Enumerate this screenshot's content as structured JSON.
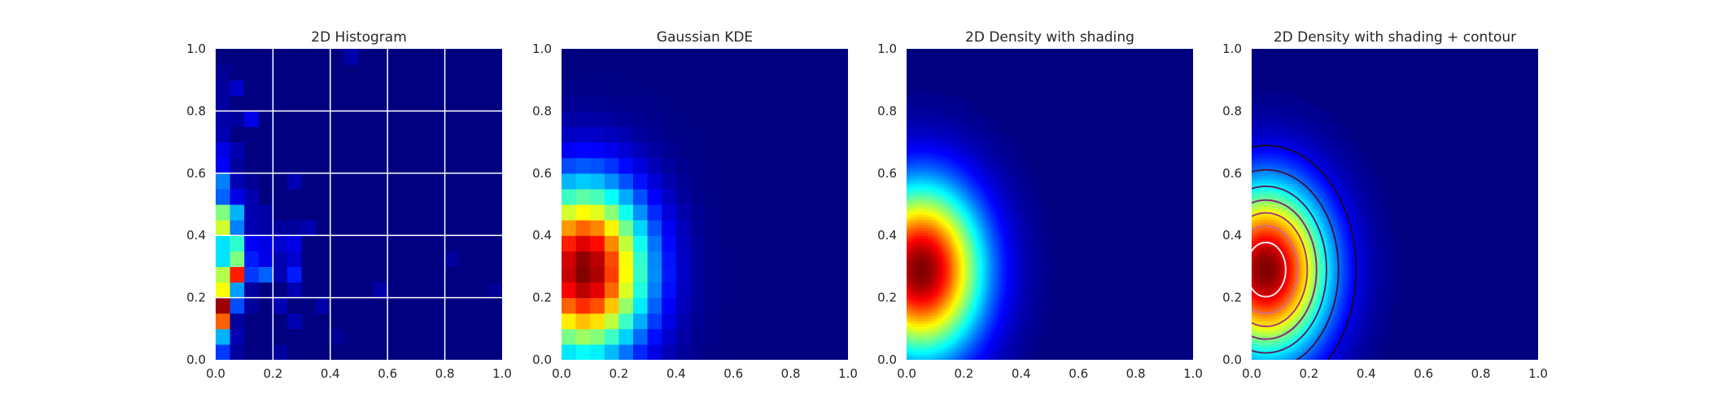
{
  "figure": {
    "background": "#ffffff",
    "colormap": "jet"
  },
  "chart_data": [
    {
      "type": "heatmap",
      "title": "2D Histogram",
      "xlim": [
        0,
        1
      ],
      "ylim": [
        0,
        1
      ],
      "grid": true,
      "xticks": [
        "0.0",
        "0.2",
        "0.4",
        "0.6",
        "0.8",
        "1.0"
      ],
      "yticks": [
        "0.0",
        "0.2",
        "0.4",
        "0.6",
        "0.8",
        "1.0"
      ],
      "bins": [
        20,
        20
      ],
      "values_bottom_to_top": [
        [
          0.18,
          0.03,
          0,
          0,
          0.03,
          0,
          0,
          0,
          0,
          0,
          0,
          0,
          0,
          0,
          0,
          0,
          0,
          0,
          0,
          0
        ],
        [
          0.3,
          0.05,
          0,
          0,
          0,
          0,
          0,
          0,
          0.02,
          0,
          0,
          0,
          0,
          0,
          0,
          0,
          0,
          0,
          0,
          0
        ],
        [
          0.78,
          0.03,
          0,
          0,
          0,
          0.05,
          0,
          0,
          0,
          0,
          0,
          0,
          0,
          0,
          0,
          0,
          0,
          0,
          0,
          0
        ],
        [
          0.97,
          0.2,
          0.03,
          0,
          0.05,
          0,
          0,
          0.04,
          0,
          0,
          0,
          0,
          0,
          0,
          0,
          0,
          0,
          0,
          0,
          0
        ],
        [
          0.62,
          0.28,
          0.03,
          0,
          0,
          0.05,
          0,
          0,
          0,
          0,
          0,
          0.04,
          0,
          0,
          0,
          0,
          0,
          0,
          0,
          0.02
        ],
        [
          0.55,
          0.85,
          0.18,
          0.22,
          0.05,
          0.15,
          0,
          0,
          0,
          0,
          0,
          0,
          0,
          0,
          0,
          0,
          0,
          0,
          0,
          0
        ],
        [
          0.35,
          0.5,
          0.15,
          0.1,
          0.05,
          0.08,
          0,
          0,
          0,
          0,
          0,
          0,
          0,
          0,
          0,
          0,
          0.03,
          0,
          0,
          0
        ],
        [
          0.35,
          0.42,
          0.12,
          0.1,
          0.08,
          0.1,
          0,
          0,
          0,
          0,
          0,
          0,
          0,
          0,
          0,
          0,
          0,
          0,
          0,
          0
        ],
        [
          0.58,
          0.25,
          0.05,
          0.04,
          0.03,
          0.03,
          0.05,
          0,
          0,
          0,
          0,
          0,
          0,
          0,
          0,
          0,
          0,
          0,
          0,
          0
        ],
        [
          0.5,
          0.3,
          0.05,
          0.04,
          0,
          0,
          0,
          0,
          0,
          0,
          0,
          0,
          0,
          0,
          0,
          0,
          0,
          0,
          0,
          0
        ],
        [
          0.22,
          0.1,
          0.05,
          0,
          0,
          0,
          0,
          0,
          0,
          0,
          0,
          0,
          0,
          0,
          0,
          0,
          0,
          0,
          0,
          0
        ],
        [
          0.25,
          0.05,
          0.02,
          0,
          0,
          0.05,
          0,
          0,
          0,
          0,
          0,
          0,
          0,
          0,
          0,
          0,
          0,
          0,
          0,
          0
        ],
        [
          0.12,
          0.03,
          0,
          0,
          0,
          0,
          0,
          0,
          0,
          0,
          0,
          0,
          0,
          0,
          0,
          0,
          0,
          0,
          0,
          0
        ],
        [
          0.1,
          0.05,
          0,
          0,
          0,
          0,
          0,
          0,
          0,
          0,
          0,
          0,
          0,
          0,
          0,
          0,
          0,
          0,
          0,
          0
        ],
        [
          0.05,
          0,
          0,
          0,
          0,
          0,
          0,
          0,
          0,
          0,
          0,
          0,
          0,
          0,
          0,
          0,
          0,
          0,
          0,
          0
        ],
        [
          0.04,
          0.03,
          0.1,
          0,
          0,
          0,
          0,
          0,
          0,
          0,
          0,
          0,
          0,
          0,
          0,
          0,
          0,
          0,
          0,
          0
        ],
        [
          0.03,
          0,
          0,
          0,
          0,
          0,
          0,
          0,
          0,
          0,
          0,
          0,
          0,
          0,
          0,
          0,
          0,
          0,
          0,
          0
        ],
        [
          0.03,
          0.07,
          0,
          0,
          0,
          0,
          0,
          0,
          0,
          0,
          0,
          0,
          0,
          0,
          0,
          0,
          0,
          0,
          0,
          0
        ],
        [
          0.02,
          0,
          0,
          0,
          0,
          0,
          0,
          0,
          0,
          0,
          0,
          0,
          0,
          0,
          0,
          0,
          0,
          0,
          0,
          0
        ],
        [
          0,
          0,
          0,
          0,
          0,
          0,
          0,
          0,
          0,
          0.04,
          0,
          0,
          0,
          0,
          0,
          0,
          0,
          0,
          0,
          0
        ]
      ]
    },
    {
      "type": "heatmap",
      "title": "Gaussian KDE",
      "xlim": [
        0,
        1
      ],
      "ylim": [
        0,
        1
      ],
      "grid": false,
      "xticks": [
        "0.0",
        "0.2",
        "0.4",
        "0.6",
        "0.8",
        "1.0"
      ],
      "yticks": [
        "0.0",
        "0.2",
        "0.4",
        "0.6",
        "0.8",
        "1.0"
      ],
      "bins": [
        20,
        20
      ],
      "density_peak": {
        "x": 0.08,
        "y": 0.29,
        "sigma_x": 0.15,
        "sigma_y": 0.19
      }
    },
    {
      "type": "heatmap",
      "title": "2D Density with shading",
      "xlim": [
        0,
        1
      ],
      "ylim": [
        0,
        1
      ],
      "grid": false,
      "xticks": [
        "0.0",
        "0.2",
        "0.4",
        "0.6",
        "0.8",
        "1.0"
      ],
      "yticks": [
        "0.0",
        "0.2",
        "0.4",
        "0.6",
        "0.8",
        "1.0"
      ],
      "density_peak": {
        "x": 0.05,
        "y": 0.29,
        "sigma_x": 0.15,
        "sigma_y": 0.19
      }
    },
    {
      "type": "heatmap",
      "title": "2D Density with shading + contour",
      "xlim": [
        0,
        1
      ],
      "ylim": [
        0,
        1
      ],
      "grid": false,
      "xticks": [
        "0.0",
        "0.2",
        "0.4",
        "0.6",
        "0.8",
        "1.0"
      ],
      "yticks": [
        "0.0",
        "0.2",
        "0.4",
        "0.6",
        "0.8",
        "1.0"
      ],
      "density_peak": {
        "x": 0.05,
        "y": 0.29,
        "sigma_x": 0.15,
        "sigma_y": 0.19
      },
      "contour_levels": [
        0.11,
        0.24,
        0.37,
        0.5,
        0.63,
        0.76,
        0.9
      ],
      "contour_colors": [
        "#1c0a2b",
        "#3d1848",
        "#5d2260",
        "#832e75",
        "#a93a7c",
        "#d46a88",
        "#f5e6ea"
      ]
    }
  ]
}
